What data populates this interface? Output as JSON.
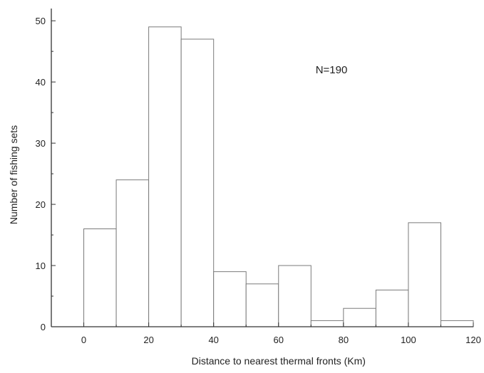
{
  "chart_data": {
    "type": "bar",
    "subtype": "histogram",
    "bin_edges": [
      0,
      10,
      20,
      30,
      40,
      50,
      60,
      70,
      80,
      90,
      100,
      110,
      120
    ],
    "values": [
      16,
      24,
      49,
      47,
      9,
      7,
      10,
      1,
      3,
      6,
      17,
      1
    ],
    "xlabel": "Distance to nearest thermal fronts (Km)",
    "ylabel": "Number of fishing sets",
    "xlim": [
      -10,
      120
    ],
    "ylim": [
      0,
      52
    ],
    "x_ticks": [
      "0",
      "20",
      "40",
      "60",
      "80",
      "100",
      "120"
    ],
    "y_ticks": [
      "0",
      "10",
      "20",
      "30",
      "40",
      "50"
    ],
    "annotation": "N=190",
    "grid": false,
    "legend": "none",
    "colors": {
      "bar_fill": "#ffffff",
      "bar_edge": "#7a7a7a",
      "axis": "#333333",
      "text": "#222222"
    }
  }
}
